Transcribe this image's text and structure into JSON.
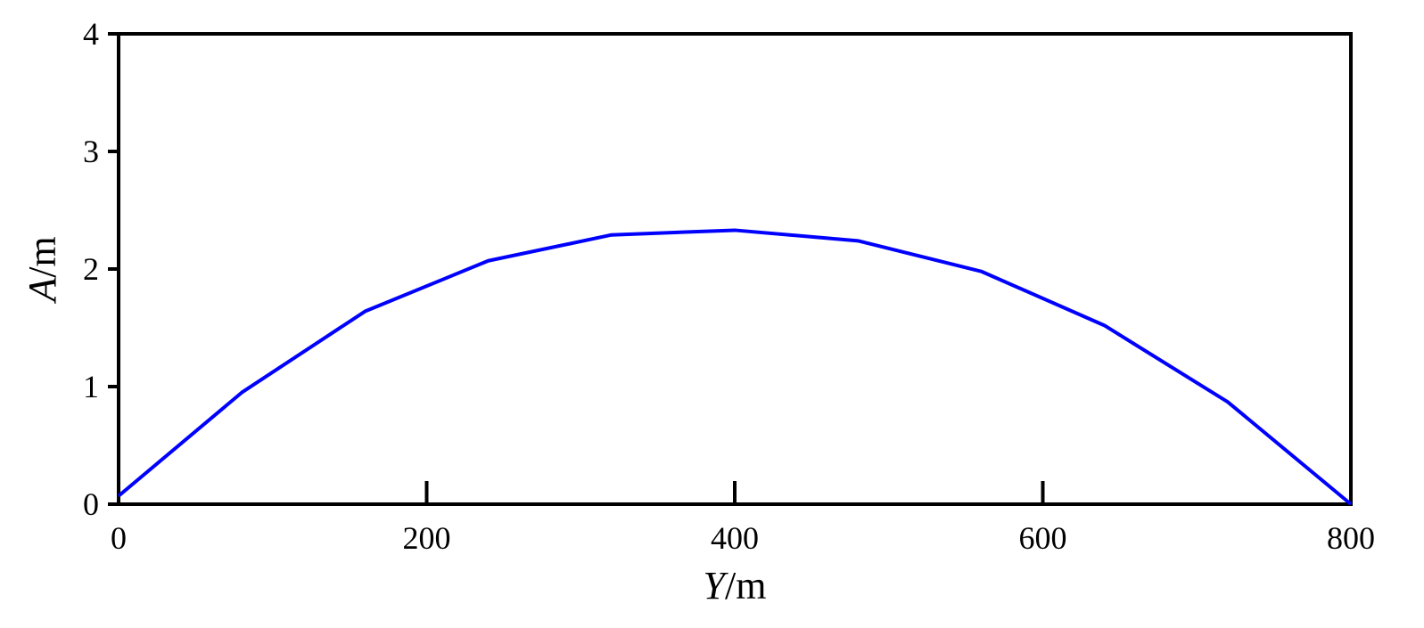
{
  "chart_data": {
    "type": "line",
    "xlabel": "Y/m",
    "ylabel": "A/m",
    "x": [
      0,
      80,
      160,
      240,
      320,
      400,
      480,
      560,
      640,
      720,
      800
    ],
    "series": [
      {
        "name": "A",
        "color": "#0000ff",
        "values": [
          0.07,
          0.95,
          1.64,
          2.07,
          2.29,
          2.33,
          2.24,
          1.98,
          1.52,
          0.87,
          0
        ]
      }
    ],
    "xlim": [
      0,
      800
    ],
    "ylim": [
      0,
      4
    ],
    "xticks": [
      0,
      200,
      400,
      600,
      800
    ],
    "yticks": [
      0,
      1,
      2,
      3,
      4
    ],
    "grid": false
  }
}
